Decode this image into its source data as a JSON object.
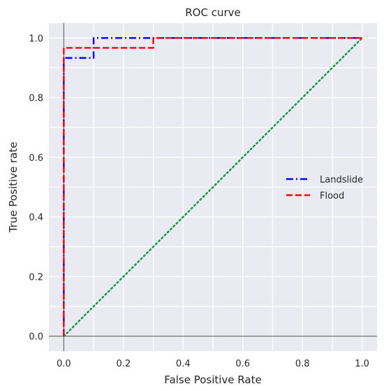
{
  "chart_data": {
    "type": "line",
    "title": "ROC curve",
    "xlabel": "False Positive Rate",
    "ylabel": "True Positive rate",
    "xlim": [
      -0.05,
      1.05
    ],
    "ylim": [
      -0.05,
      1.05
    ],
    "xticks": [
      0.0,
      0.2,
      0.4,
      0.6,
      0.8,
      1.0
    ],
    "yticks": [
      0.0,
      0.2,
      0.4,
      0.6,
      0.8,
      1.0
    ],
    "xtick_labels": [
      "0.0",
      "0.2",
      "0.4",
      "0.6",
      "0.8",
      "1.0"
    ],
    "ytick_labels": [
      "0.0",
      "0.2",
      "0.4",
      "0.6",
      "0.8",
      "1.0"
    ],
    "grid": true,
    "legend_position": "center-right",
    "background_color": "#eaeaf2",
    "series": [
      {
        "name": "Landslide",
        "color": "#0000ff",
        "style": "dashdot",
        "x": [
          0.0,
          0.0,
          0.1,
          0.1,
          1.0
        ],
        "y": [
          0.0,
          0.933,
          0.933,
          1.0,
          1.0
        ]
      },
      {
        "name": "Flood",
        "color": "#ff0000",
        "style": "dashed",
        "x": [
          0.0,
          0.0,
          0.3,
          0.3,
          1.0
        ],
        "y": [
          0.0,
          0.967,
          0.967,
          1.0,
          1.0
        ]
      },
      {
        "name": "",
        "color": "#009933",
        "style": "dotted",
        "x": [
          0.0,
          1.0
        ],
        "y": [
          0.0,
          1.0
        ]
      }
    ],
    "reference_lines": {
      "x": 0.0,
      "y": 0.0,
      "color": "#555555"
    }
  }
}
